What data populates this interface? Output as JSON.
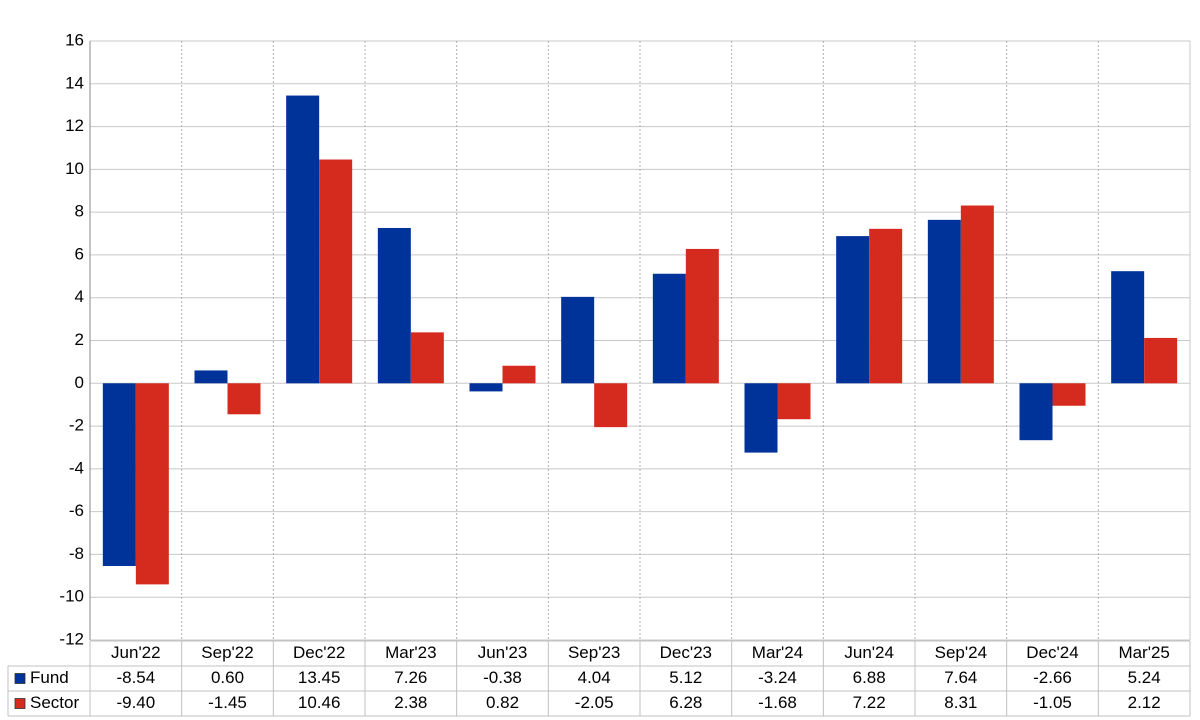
{
  "chart_data": {
    "type": "bar",
    "categories": [
      "Jun'22",
      "Sep'22",
      "Dec'22",
      "Mar'23",
      "Jun'23",
      "Sep'23",
      "Dec'23",
      "Mar'24",
      "Jun'24",
      "Sep'24",
      "Dec'24",
      "Mar'25"
    ],
    "series": [
      {
        "name": "Fund",
        "color": "#003399",
        "values": [
          -8.54,
          0.6,
          13.45,
          7.26,
          -0.38,
          4.04,
          5.12,
          -3.24,
          6.88,
          7.64,
          -2.66,
          5.24
        ],
        "value_labels": [
          "-8.54",
          "0.60",
          "13.45",
          "7.26",
          "-0.38",
          "4.04",
          "5.12",
          "-3.24",
          "6.88",
          "7.64",
          "-2.66",
          "5.24"
        ]
      },
      {
        "name": "Sector",
        "color": "#d52b1e",
        "values": [
          -9.4,
          -1.45,
          10.46,
          2.38,
          0.82,
          -2.05,
          6.28,
          -1.68,
          7.22,
          8.31,
          -1.05,
          2.12
        ],
        "value_labels": [
          "-9.40",
          "-1.45",
          "10.46",
          "2.38",
          "0.82",
          "-2.05",
          "6.28",
          "-1.68",
          "7.22",
          "8.31",
          "-1.05",
          "2.12"
        ]
      }
    ],
    "ylim": [
      -12,
      16
    ],
    "yticks": [
      -12,
      -10,
      -8,
      -6,
      -4,
      -2,
      0,
      2,
      4,
      6,
      8,
      10,
      12,
      14,
      16
    ],
    "grid": true
  }
}
